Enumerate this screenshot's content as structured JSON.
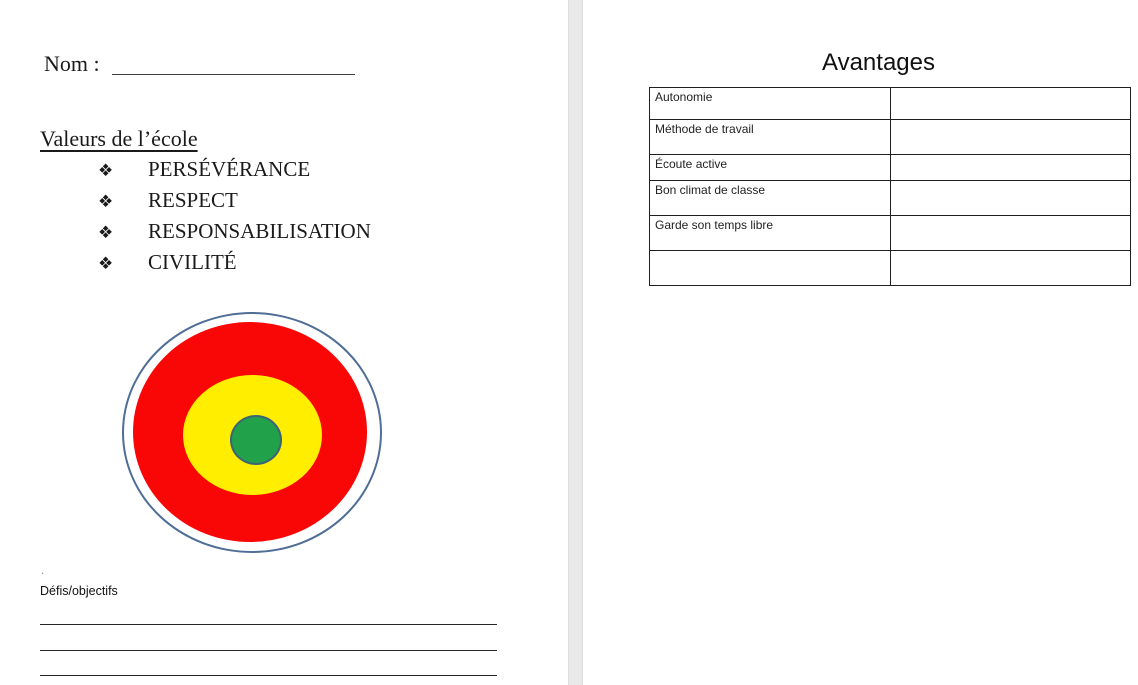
{
  "document": {
    "page_left": {
      "name_label": "Nom :",
      "name_value": "",
      "values_heading": "Valeurs de l’école",
      "bullet_glyph": "❖",
      "values": [
        "PERSÉVÉRANCE",
        "RESPECT",
        "RESPONSABILISATION",
        "CIVILITÉ"
      ],
      "target_image": {
        "colors": {
          "outer_ring": "#4f6e96",
          "outer_zone": "#f90606",
          "middle_zone": "#ffee00",
          "center_zone": "#21a14a",
          "center_ring": "#3d6379"
        }
      },
      "stray_mark": ".",
      "challenges_label": "Défis/objectifs",
      "writing_lines_count": 3
    },
    "page_right": {
      "heading": "Avantages",
      "table": {
        "rows": [
          {
            "label": "Autonomie",
            "value": ""
          },
          {
            "label": "Méthode de travail",
            "value": ""
          },
          {
            "label": "Écoute active",
            "value": ""
          },
          {
            "label": "Bon climat de classe",
            "value": ""
          },
          {
            "label": "Garde son temps libre",
            "value": ""
          },
          {
            "label": "",
            "value": ""
          }
        ]
      }
    }
  }
}
